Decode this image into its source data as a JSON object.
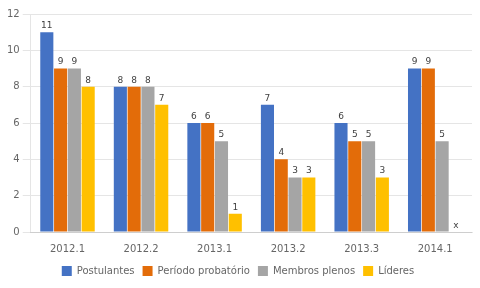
{
  "chart_data": {
    "type": "bar",
    "categories": [
      "2012.1",
      "2012.2",
      "2013.1",
      "2013.2",
      "2013.3",
      "2014.1"
    ],
    "series": [
      {
        "name": "Postulantes",
        "color": "#4472c4",
        "values": [
          11,
          8,
          6,
          7,
          6,
          9
        ]
      },
      {
        "name": "Período probatório",
        "color": "#e36c09",
        "values": [
          9,
          8,
          6,
          4,
          5,
          9
        ]
      },
      {
        "name": "Membros plenos",
        "color": "#a5a5a5",
        "values": [
          9,
          8,
          5,
          3,
          5,
          5
        ]
      },
      {
        "name": "Líderes",
        "color": "#ffc000",
        "values": [
          8,
          7,
          1,
          3,
          3,
          0
        ],
        "value_labels": [
          "8",
          "7",
          "1",
          "3",
          "3",
          "x"
        ]
      }
    ],
    "ylim": [
      0,
      12
    ],
    "yticks": [
      0,
      2,
      4,
      6,
      8,
      10,
      12
    ],
    "grid": true,
    "legend": "bottom",
    "data_labels": true
  }
}
